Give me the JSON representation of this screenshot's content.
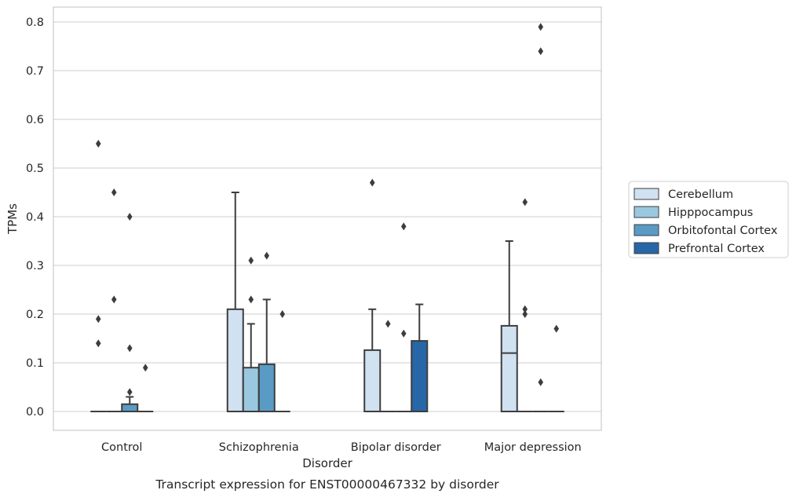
{
  "chart_data": {
    "type": "box",
    "title": "",
    "caption": "Transcript expression for ENST00000467332 by disorder",
    "xlabel": "Disorder",
    "ylabel": "TPMs",
    "ylim": [
      -0.04,
      0.83
    ],
    "yticks": [
      "0.0",
      "0.1",
      "0.2",
      "0.3",
      "0.4",
      "0.5",
      "0.6",
      "0.7",
      "0.8"
    ],
    "grid": "horizontal",
    "legend_position": "right",
    "categories": [
      "Control",
      "Schizophrenia",
      "Bipolar disorder",
      "Major depression"
    ],
    "series": [
      {
        "name": "Cerebellum",
        "color": "#d0e1f2",
        "boxes": [
          {
            "q1": 0,
            "median": 0,
            "q3": 0,
            "whisker_low": 0,
            "whisker_high": 0,
            "outliers": [
              0.55,
              0.19,
              0.14
            ]
          },
          {
            "q1": 0,
            "median": 0,
            "q3": 0.21,
            "whisker_low": 0,
            "whisker_high": 0.45,
            "outliers": []
          },
          {
            "q1": 0,
            "median": 0,
            "q3": 0.126,
            "whisker_low": 0,
            "whisker_high": 0.21,
            "outliers": [
              0.47
            ]
          },
          {
            "q1": 0,
            "median": 0.12,
            "q3": 0.176,
            "whisker_low": 0,
            "whisker_high": 0.35,
            "outliers": []
          }
        ]
      },
      {
        "name": "Hipppocampus",
        "color": "#9ac8e0",
        "boxes": [
          {
            "q1": 0,
            "median": 0,
            "q3": 0,
            "whisker_low": 0,
            "whisker_high": 0,
            "outliers": [
              0.45,
              0.23
            ]
          },
          {
            "q1": 0,
            "median": 0,
            "q3": 0.09,
            "whisker_low": 0,
            "whisker_high": 0.18,
            "outliers": [
              0.31,
              0.23
            ]
          },
          {
            "q1": 0,
            "median": 0,
            "q3": 0,
            "whisker_low": 0,
            "whisker_high": 0,
            "outliers": [
              0.18
            ]
          },
          {
            "q1": 0,
            "median": 0,
            "q3": 0,
            "whisker_low": 0,
            "whisker_high": 0,
            "outliers": [
              0.43,
              0.21,
              0.2
            ]
          }
        ]
      },
      {
        "name": "Orbitofontal Cortex",
        "color": "#5a9bc6",
        "boxes": [
          {
            "q1": 0,
            "median": 0,
            "q3": 0.015,
            "whisker_low": 0,
            "whisker_high": 0.03,
            "outliers": [
              0.4,
              0.13,
              0.04
            ]
          },
          {
            "q1": 0,
            "median": 0,
            "q3": 0.097,
            "whisker_low": 0,
            "whisker_high": 0.23,
            "outliers": [
              0.32
            ]
          },
          {
            "q1": 0,
            "median": 0,
            "q3": 0,
            "whisker_low": 0,
            "whisker_high": 0,
            "outliers": [
              0.38,
              0.16
            ]
          },
          {
            "q1": 0,
            "median": 0,
            "q3": 0,
            "whisker_low": 0,
            "whisker_high": 0,
            "outliers": [
              0.79,
              0.74,
              0.06
            ]
          }
        ]
      },
      {
        "name": "Prefrontal Cortex",
        "color": "#2767a8",
        "boxes": [
          {
            "q1": 0,
            "median": 0,
            "q3": 0,
            "whisker_low": 0,
            "whisker_high": 0,
            "outliers": [
              0.09
            ]
          },
          {
            "q1": 0,
            "median": 0,
            "q3": 0,
            "whisker_low": 0,
            "whisker_high": 0,
            "outliers": [
              0.2
            ]
          },
          {
            "q1": 0,
            "median": 0,
            "q3": 0.145,
            "whisker_low": 0,
            "whisker_high": 0.22,
            "outliers": []
          },
          {
            "q1": 0,
            "median": 0,
            "q3": 0,
            "whisker_low": 0,
            "whisker_high": 0,
            "outliers": [
              0.17
            ]
          }
        ]
      }
    ]
  }
}
